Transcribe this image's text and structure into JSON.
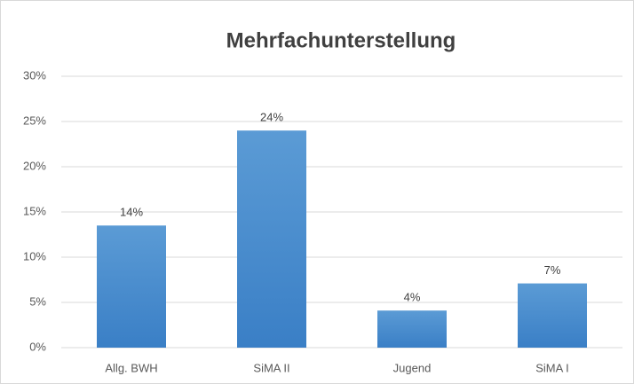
{
  "chart_data": {
    "type": "bar",
    "title": "Mehrfachunterstellung",
    "categories": [
      "Allg. BWH",
      "SiMA II",
      "Jugend",
      "SiMA I"
    ],
    "values": [
      13.5,
      24,
      4.1,
      7.1
    ],
    "value_labels": [
      "14%",
      "24%",
      "4%",
      "7%"
    ],
    "color": "#5b9bd5",
    "ylim": [
      0,
      30
    ],
    "yticks": [
      {
        "value": 0,
        "label": "0%"
      },
      {
        "value": 5,
        "label": "5%"
      },
      {
        "value": 10,
        "label": "10%"
      },
      {
        "value": 15,
        "label": "15%"
      },
      {
        "value": 20,
        "label": "20%"
      },
      {
        "value": 25,
        "label": "25%"
      },
      {
        "value": 30,
        "label": "30%"
      }
    ],
    "grid": true
  }
}
